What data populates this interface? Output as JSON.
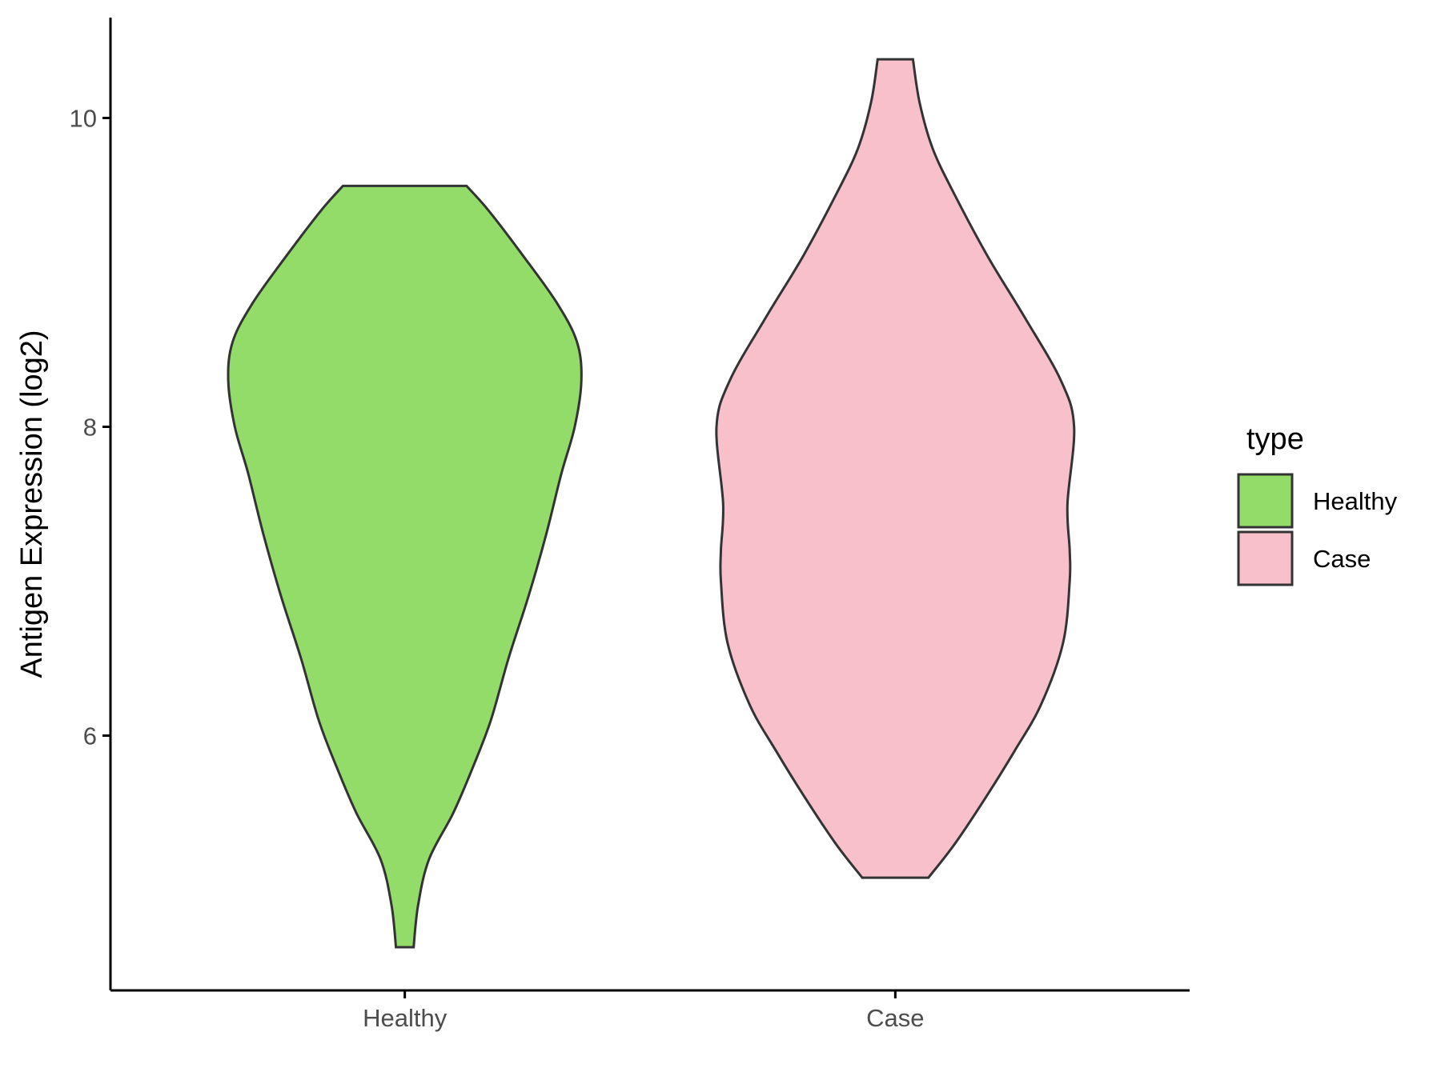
{
  "chart_data": {
    "type": "violin",
    "ylabel": "Antigen Expression (log2)",
    "xlabel": "",
    "ylim": [
      4.35,
      10.65
    ],
    "yticks": [
      6,
      8,
      10
    ],
    "categories": [
      "Healthy",
      "Case"
    ],
    "legend": {
      "title": "type",
      "placement": "right",
      "entries": [
        {
          "label": "Healthy",
          "color": "#93dc6a"
        },
        {
          "label": "Case",
          "color": "#f7c0cb"
        }
      ]
    },
    "series": [
      {
        "category": "Healthy",
        "color": "#93dc6a",
        "min": 4.63,
        "max": 9.56,
        "profile": [
          {
            "y": 4.63,
            "w": 0.04
          },
          {
            "y": 4.9,
            "w": 0.06
          },
          {
            "y": 5.2,
            "w": 0.11
          },
          {
            "y": 5.5,
            "w": 0.22
          },
          {
            "y": 5.8,
            "w": 0.31
          },
          {
            "y": 6.1,
            "w": 0.39
          },
          {
            "y": 6.5,
            "w": 0.47
          },
          {
            "y": 6.9,
            "w": 0.56
          },
          {
            "y": 7.3,
            "w": 0.64
          },
          {
            "y": 7.7,
            "w": 0.71
          },
          {
            "y": 8.0,
            "w": 0.77
          },
          {
            "y": 8.3,
            "w": 0.8
          },
          {
            "y": 8.55,
            "w": 0.78
          },
          {
            "y": 8.8,
            "w": 0.69
          },
          {
            "y": 9.1,
            "w": 0.54
          },
          {
            "y": 9.4,
            "w": 0.38
          },
          {
            "y": 9.56,
            "w": 0.28
          }
        ]
      },
      {
        "category": "Case",
        "color": "#f7c0cb",
        "min": 5.08,
        "max": 10.38,
        "profile": [
          {
            "y": 5.08,
            "w": 0.15
          },
          {
            "y": 5.3,
            "w": 0.27
          },
          {
            "y": 5.6,
            "w": 0.41
          },
          {
            "y": 5.9,
            "w": 0.54
          },
          {
            "y": 6.2,
            "w": 0.66
          },
          {
            "y": 6.6,
            "w": 0.76
          },
          {
            "y": 7.0,
            "w": 0.79
          },
          {
            "y": 7.2,
            "w": 0.79
          },
          {
            "y": 7.5,
            "w": 0.78
          },
          {
            "y": 8.0,
            "w": 0.81
          },
          {
            "y": 8.3,
            "w": 0.75
          },
          {
            "y": 8.7,
            "w": 0.59
          },
          {
            "y": 9.1,
            "w": 0.42
          },
          {
            "y": 9.5,
            "w": 0.27
          },
          {
            "y": 9.8,
            "w": 0.17
          },
          {
            "y": 10.1,
            "w": 0.11
          },
          {
            "y": 10.38,
            "w": 0.08
          }
        ]
      }
    ]
  }
}
